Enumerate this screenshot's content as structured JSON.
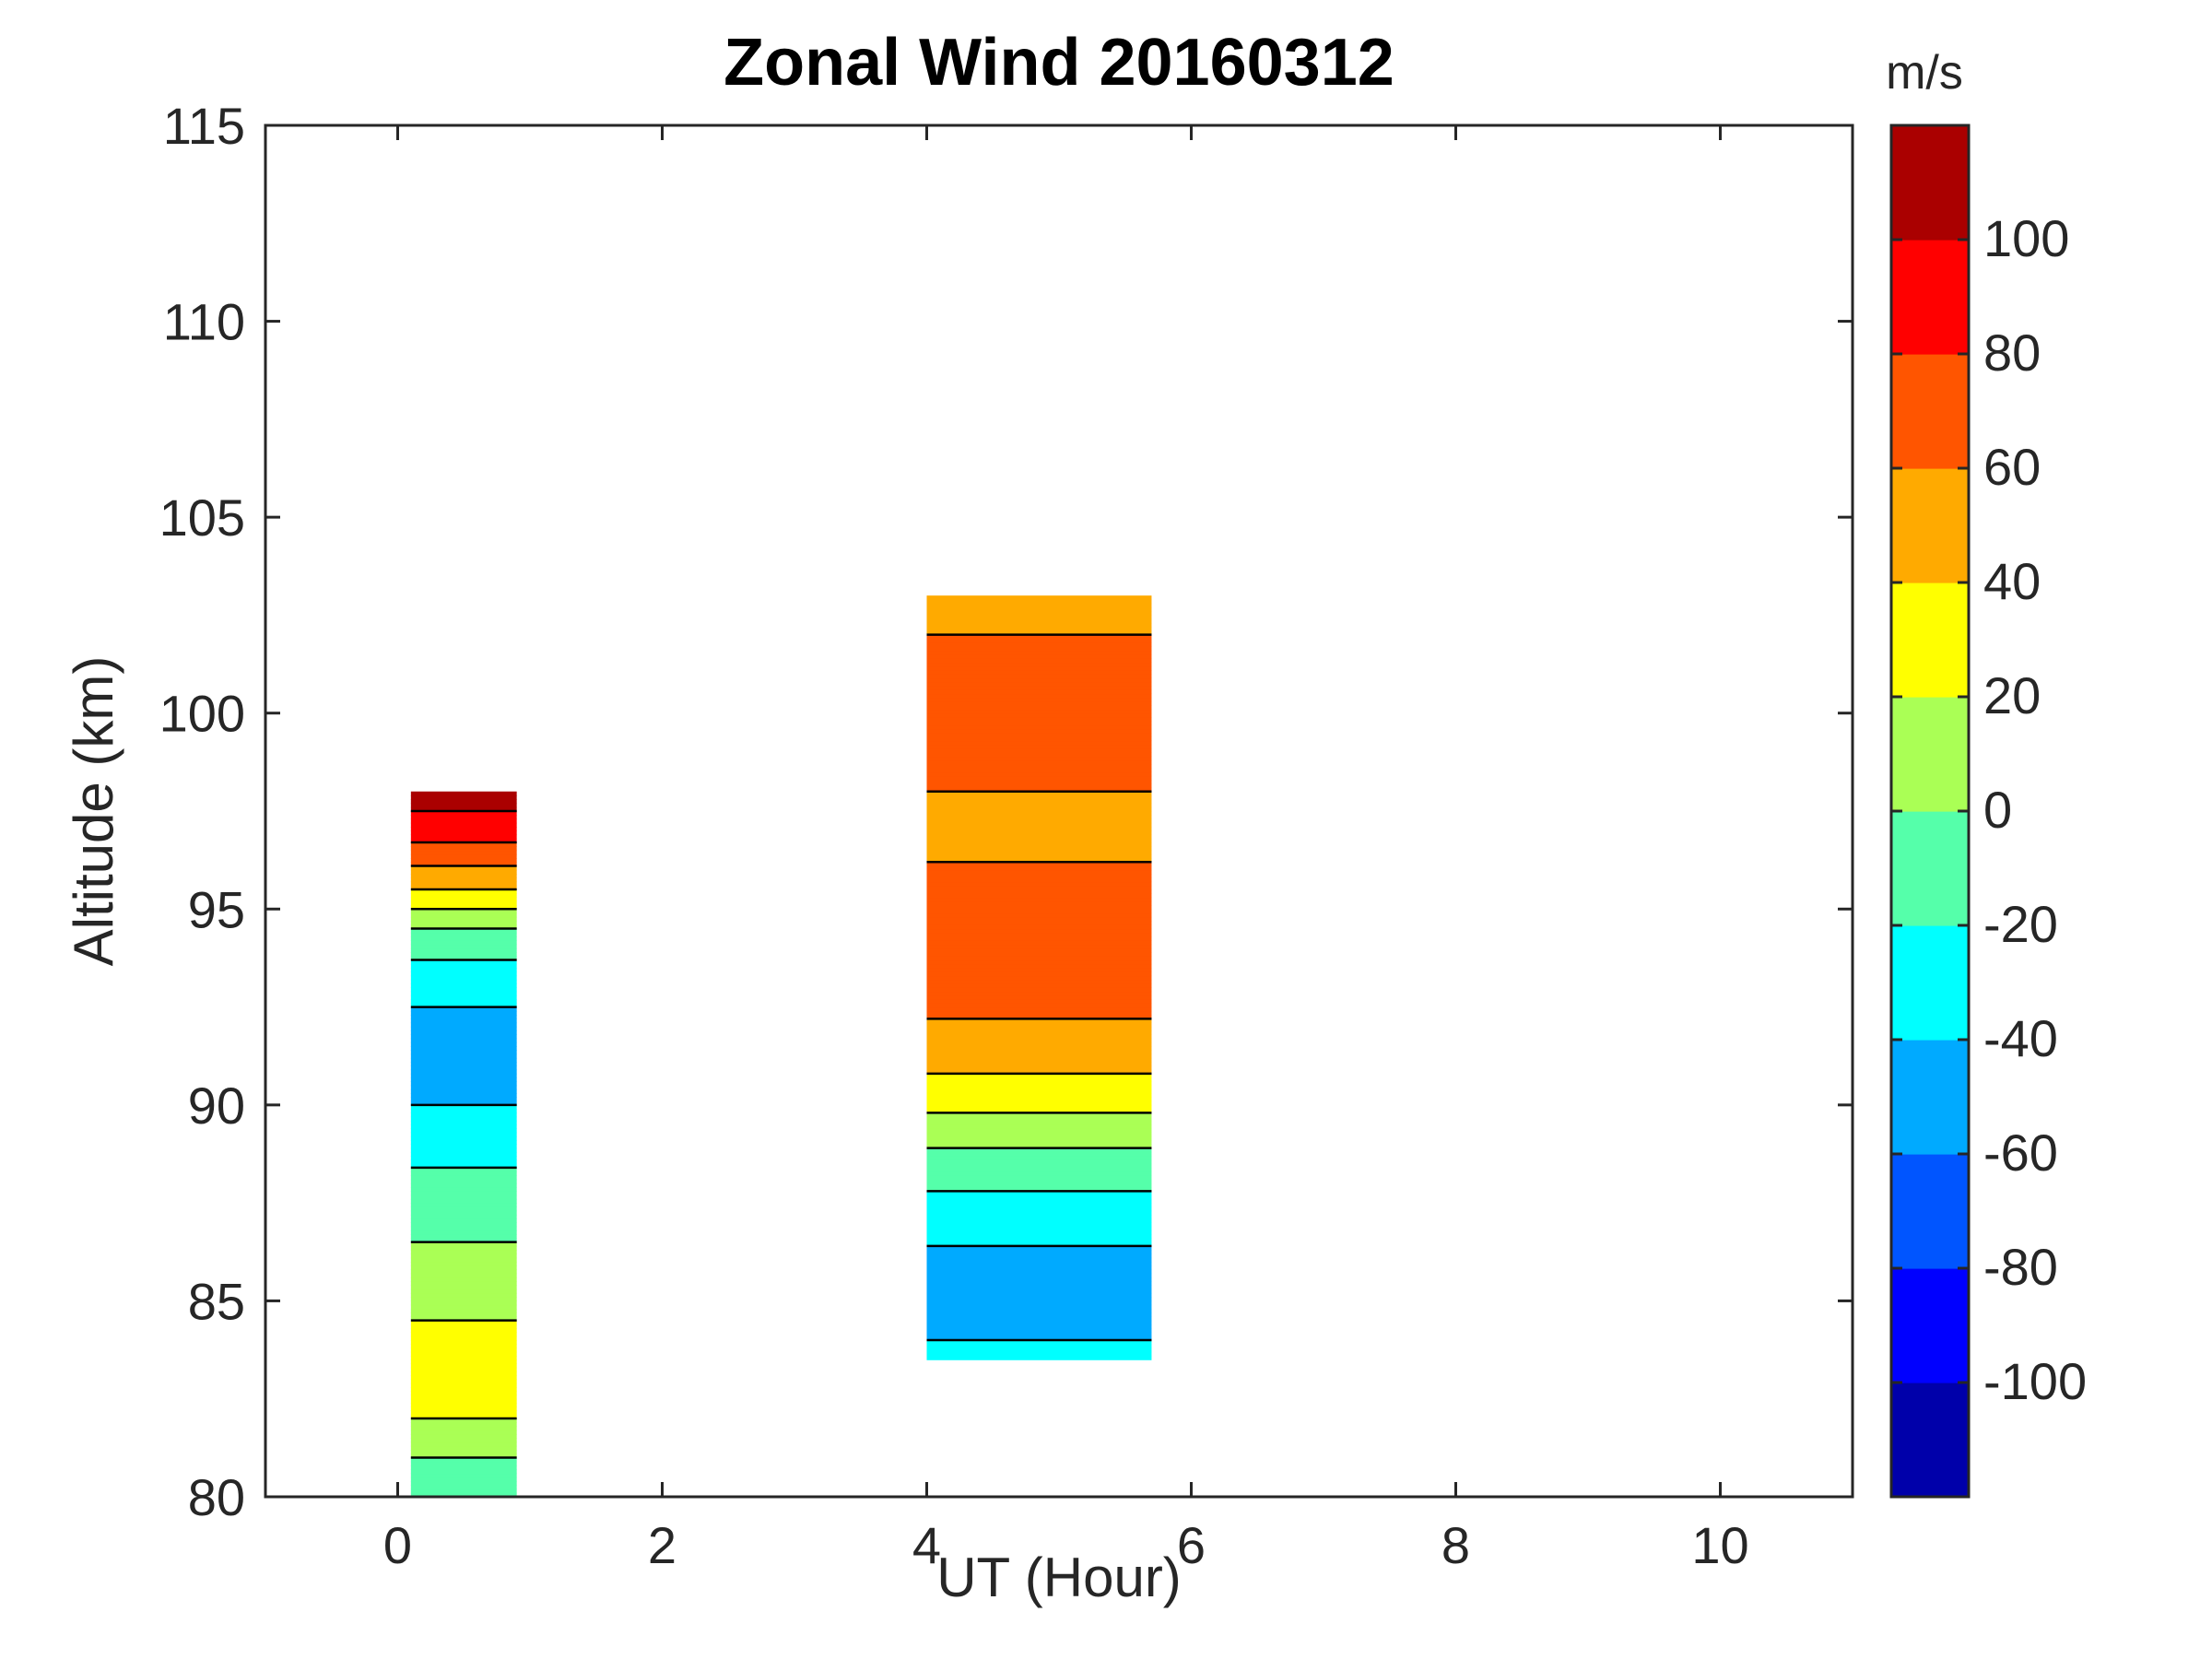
{
  "chart_data": {
    "type": "heatmap",
    "subtype": "filled-contour",
    "title": "Zonal Wind 20160312",
    "xlabel": "UT (Hour)",
    "ylabel": "Altitude (km)",
    "xlim": [
      -1,
      11
    ],
    "ylim": [
      80,
      115
    ],
    "xticks": [
      0,
      2,
      4,
      6,
      8,
      10
    ],
    "yticks": [
      80,
      85,
      90,
      95,
      100,
      105,
      110,
      115
    ],
    "grid": false,
    "colorbar": {
      "label": "m/s",
      "range": [
        -120,
        120
      ],
      "ticks": [
        -100,
        -80,
        -60,
        -40,
        -20,
        0,
        20,
        40,
        60,
        80,
        100
      ],
      "levels": [
        -120,
        -100,
        -80,
        -60,
        -40,
        -20,
        0,
        20,
        40,
        60,
        80,
        100,
        120
      ],
      "colors": [
        "#0000aa",
        "#0000ff",
        "#0055ff",
        "#00aaff",
        "#00ffff",
        "#55ffaa",
        "#aaff55",
        "#ffff00",
        "#ffaa00",
        "#ff5500",
        "#ff0000",
        "#aa0000"
      ]
    },
    "contour_color": "#000000",
    "panels": [
      {
        "ut_start": 0.1,
        "ut_end": 0.9,
        "alt_bottom": 80,
        "alt_top": 98,
        "profile": [
          {
            "alt": 80.5,
            "wind": -10
          },
          {
            "alt": 82,
            "wind": 20
          },
          {
            "alt": 84,
            "wind": 25
          },
          {
            "alt": 86,
            "wind": 5
          },
          {
            "alt": 88,
            "wind": -15
          },
          {
            "alt": 90,
            "wind": -40
          },
          {
            "alt": 92,
            "wind": -48
          },
          {
            "alt": 93.5,
            "wind": -25
          },
          {
            "alt": 94.5,
            "wind": 0
          },
          {
            "alt": 95.5,
            "wind": 40
          },
          {
            "alt": 96.5,
            "wind": 75
          },
          {
            "alt": 97.5,
            "wind": 100
          }
        ]
      },
      {
        "ut_start": 4.0,
        "ut_end": 5.7,
        "alt_bottom": 83.5,
        "alt_top": 103,
        "profile": [
          {
            "alt": 84,
            "wind": -40
          },
          {
            "alt": 85.5,
            "wind": -55
          },
          {
            "alt": 87,
            "wind": -30
          },
          {
            "alt": 88.5,
            "wind": -10
          },
          {
            "alt": 89.5,
            "wind": 15
          },
          {
            "alt": 90.5,
            "wind": 35
          },
          {
            "alt": 91.5,
            "wind": 50
          },
          {
            "alt": 93,
            "wind": 72
          },
          {
            "alt": 95,
            "wind": 68
          },
          {
            "alt": 97,
            "wind": 55
          },
          {
            "alt": 99,
            "wind": 65
          },
          {
            "alt": 101,
            "wind": 70
          },
          {
            "alt": 102.5,
            "wind": 55
          }
        ]
      }
    ]
  }
}
